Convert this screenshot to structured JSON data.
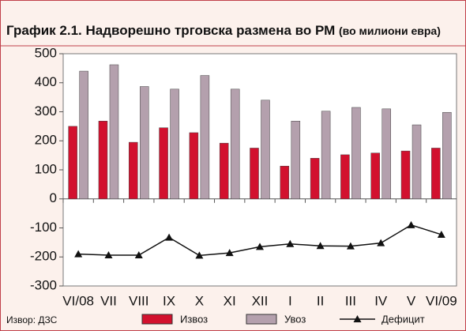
{
  "chart_data": {
    "type": "bar_line",
    "title": "График 2.1. Надворешно трговска размена во РМ",
    "title_note": "(во милиони евра)",
    "source": "Извор: ДЗС",
    "categories": [
      "VI/08",
      "VII",
      "VIII",
      "IX",
      "X",
      "XI",
      "XII",
      "I",
      "II",
      "III",
      "IV",
      "V",
      "VI/09"
    ],
    "series": [
      {
        "name": "Извоз",
        "type": "bar",
        "color": "#d2112e",
        "values": [
          250,
          268,
          195,
          245,
          228,
          192,
          175,
          113,
          140,
          152,
          158,
          165,
          175
        ]
      },
      {
        "name": "Увоз",
        "type": "bar",
        "color": "#b4a0ad",
        "values": [
          440,
          462,
          387,
          378,
          425,
          378,
          340,
          268,
          302,
          315,
          310,
          255,
          298
        ]
      },
      {
        "name": "Дефицит",
        "type": "line",
        "color": "#111111",
        "values": [
          -190,
          -194,
          -194,
          -133,
          -195,
          -186,
          -165,
          -155,
          -162,
          -163,
          -152,
          -90,
          -123
        ]
      }
    ],
    "ylim": [
      -300,
      500
    ],
    "yticks": [
      -300,
      -200,
      -100,
      0,
      100,
      200,
      300,
      400,
      500
    ]
  }
}
